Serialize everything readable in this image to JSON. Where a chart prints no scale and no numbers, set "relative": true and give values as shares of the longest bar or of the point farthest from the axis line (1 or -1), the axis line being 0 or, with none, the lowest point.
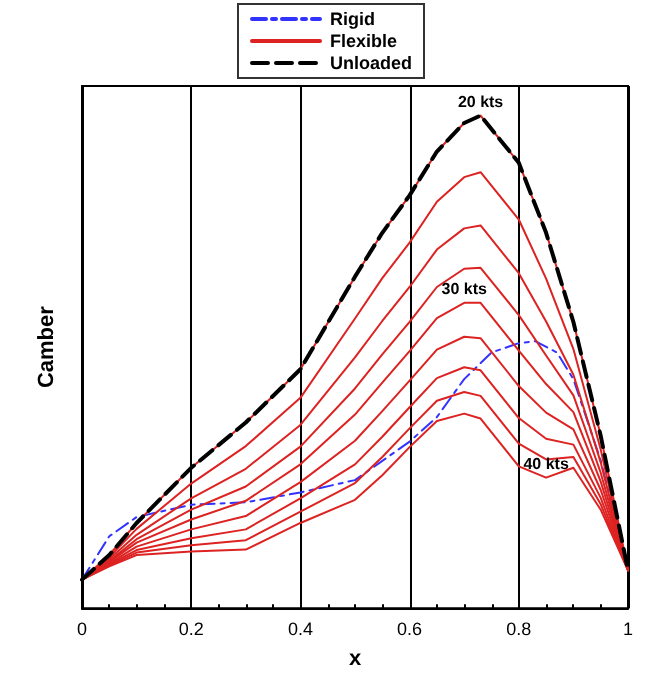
{
  "chart_data": {
    "type": "line",
    "relative": true,
    "xlabel": "x",
    "ylabel": "Camber",
    "x": [
      0,
      0.05,
      0.1,
      0.2,
      0.3,
      0.4,
      0.5,
      0.55,
      0.6,
      0.65,
      0.7,
      0.73,
      0.8,
      0.85,
      0.9,
      0.95,
      1
    ],
    "xlim": [
      0,
      1
    ],
    "xticks": [
      0,
      0.2,
      0.4,
      0.6,
      0.8,
      1
    ],
    "grid": "x",
    "tick_labels": "x",
    "legend": "top",
    "marker": "none",
    "series": [
      {
        "name": "Rigid",
        "color": "#3333ff",
        "line_style": "dashdot",
        "x": [
          0,
          0.05,
          0.1,
          0.2,
          0.3,
          0.4,
          0.5,
          0.6,
          0.65,
          0.7,
          0.75,
          0.8,
          0.83,
          0.87,
          0.9,
          0.95,
          1
        ],
        "values": [
          0.058,
          0.146,
          0.185,
          0.21,
          0.215,
          0.235,
          0.26,
          0.338,
          0.388,
          0.465,
          0.519,
          0.538,
          0.542,
          0.519,
          0.465,
          0.3,
          0.077
        ]
      },
      {
        "name": "Flexible",
        "color": "#dd2222",
        "line_style": "solid",
        "values": [
          0.058,
          0.108,
          0.173,
          0.285,
          0.377,
          0.485,
          0.673,
          0.762,
          0.838,
          0.927,
          0.985,
          1.0,
          0.904,
          0.762,
          0.581,
          0.35,
          0.077
        ]
      },
      {
        "color": "#dd2222",
        "line_style": "solid",
        "values": [
          0.058,
          0.104,
          0.161,
          0.253,
          0.329,
          0.427,
          0.588,
          0.67,
          0.742,
          0.825,
          0.875,
          0.885,
          0.789,
          0.669,
          0.526,
          0.322,
          0.077
        ]
      },
      {
        "color": "#dd2222",
        "line_style": "solid",
        "values": [
          0.058,
          0.1,
          0.149,
          0.223,
          0.283,
          0.372,
          0.509,
          0.583,
          0.652,
          0.728,
          0.771,
          0.777,
          0.68,
          0.582,
          0.474,
          0.296,
          0.077
        ]
      },
      {
        "color": "#dd2222",
        "line_style": "solid",
        "values": [
          0.058,
          0.096,
          0.14,
          0.2,
          0.247,
          0.328,
          0.446,
          0.515,
          0.581,
          0.652,
          0.689,
          0.691,
          0.595,
          0.513,
          0.432,
          0.275,
          0.077
        ]
      },
      {
        "color": "#dd2222",
        "line_style": "solid",
        "values": [
          0.058,
          0.094,
          0.133,
          0.18,
          0.218,
          0.292,
          0.393,
          0.458,
          0.522,
          0.589,
          0.62,
          0.62,
          0.523,
          0.455,
          0.398,
          0.257,
          0.077
        ]
      },
      {
        "color": "#dd2222",
        "line_style": "solid",
        "values": [
          0.058,
          0.091,
          0.125,
          0.16,
          0.187,
          0.256,
          0.34,
          0.4,
          0.462,
          0.525,
          0.551,
          0.548,
          0.451,
          0.397,
          0.363,
          0.24,
          0.077
        ]
      },
      {
        "color": "#dd2222",
        "line_style": "solid",
        "values": [
          0.058,
          0.089,
          0.118,
          0.142,
          0.16,
          0.223,
          0.292,
          0.348,
          0.408,
          0.467,
          0.489,
          0.483,
          0.386,
          0.344,
          0.332,
          0.224,
          0.077
        ]
      },
      {
        "color": "#dd2222",
        "line_style": "solid",
        "values": [
          0.058,
          0.087,
          0.113,
          0.128,
          0.138,
          0.196,
          0.254,
          0.307,
          0.365,
          0.421,
          0.439,
          0.431,
          0.334,
          0.302,
          0.307,
          0.211,
          0.077
        ]
      },
      {
        "color": "#dd2222",
        "line_style": "solid",
        "values": [
          0.058,
          0.085,
          0.108,
          0.115,
          0.119,
          0.173,
          0.22,
          0.27,
          0.327,
          0.38,
          0.395,
          0.385,
          0.288,
          0.265,
          0.285,
          0.2,
          0.077
        ]
      },
      {
        "name": "Unloaded",
        "color": "#000000",
        "line_style": "dashed",
        "values": [
          0.058,
          0.108,
          0.173,
          0.285,
          0.377,
          0.485,
          0.673,
          0.762,
          0.838,
          0.927,
          0.985,
          1.0,
          0.904,
          0.762,
          0.581,
          0.35,
          0.077
        ]
      }
    ],
    "annotations": [
      {
        "text": "20 kts",
        "x": 0.73,
        "y": 1.0
      },
      {
        "text": "30 kts",
        "x": 0.7,
        "y": 0.62
      },
      {
        "text": "40 kts",
        "x": 0.85,
        "y": 0.265
      }
    ]
  }
}
